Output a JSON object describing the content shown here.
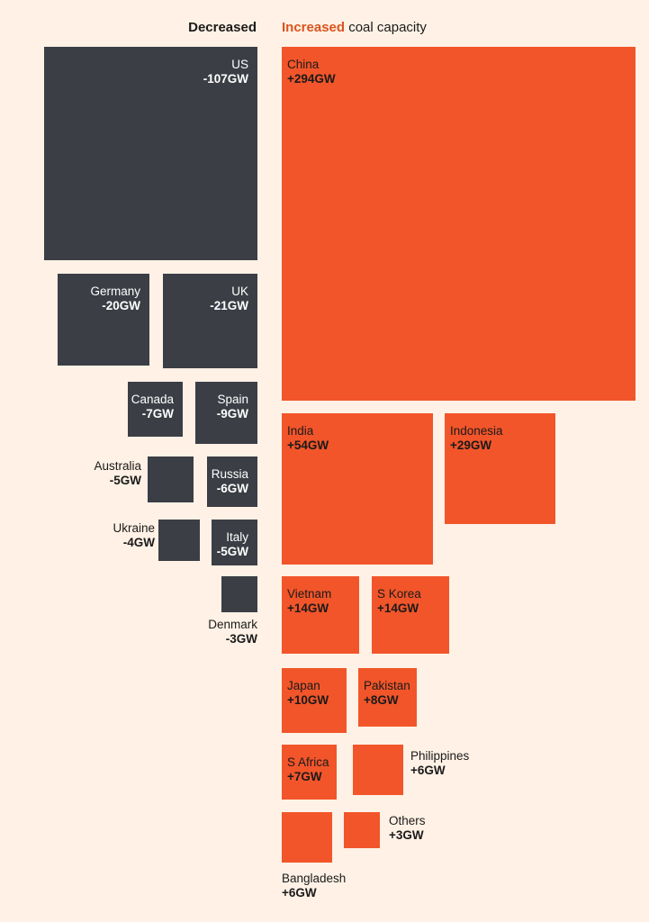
{
  "header": {
    "decreased": "Decreased",
    "increased_accent": "Increased",
    "increased_rest": " coal capacity"
  },
  "colors": {
    "background": "#fff1e5",
    "decreased": "#3b3e45",
    "increased": "#f2552a"
  },
  "chart_data": {
    "type": "treemap",
    "unit": "GW",
    "decreased": [
      {
        "name": "US",
        "value": -107,
        "label": "-107GW"
      },
      {
        "name": "Germany",
        "value": -20,
        "label": "-20GW"
      },
      {
        "name": "UK",
        "value": -21,
        "label": "-21GW"
      },
      {
        "name": "Canada",
        "value": -7,
        "label": "-7GW"
      },
      {
        "name": "Spain",
        "value": -9,
        "label": "-9GW"
      },
      {
        "name": "Australia",
        "value": -5,
        "label": "-5GW"
      },
      {
        "name": "Russia",
        "value": -6,
        "label": "-6GW"
      },
      {
        "name": "Ukraine",
        "value": -4,
        "label": "-4GW"
      },
      {
        "name": "Italy",
        "value": -5,
        "label": "-5GW"
      },
      {
        "name": "Denmark",
        "value": -3,
        "label": "-3GW"
      }
    ],
    "increased": [
      {
        "name": "China",
        "value": 294,
        "label": "+294GW"
      },
      {
        "name": "India",
        "value": 54,
        "label": "+54GW"
      },
      {
        "name": "Indonesia",
        "value": 29,
        "label": "+29GW"
      },
      {
        "name": "Vietnam",
        "value": 14,
        "label": "+14GW"
      },
      {
        "name": "S Korea",
        "value": 14,
        "label": "+14GW"
      },
      {
        "name": "Japan",
        "value": 10,
        "label": "+10GW"
      },
      {
        "name": "Pakistan",
        "value": 8,
        "label": "+8GW"
      },
      {
        "name": "S Africa",
        "value": 7,
        "label": "+7GW"
      },
      {
        "name": "Philippines",
        "value": 6,
        "label": "+6GW"
      },
      {
        "name": "Bangladesh",
        "value": 6,
        "label": "+6GW"
      },
      {
        "name": "Others",
        "value": 3,
        "label": "+3GW"
      }
    ]
  }
}
